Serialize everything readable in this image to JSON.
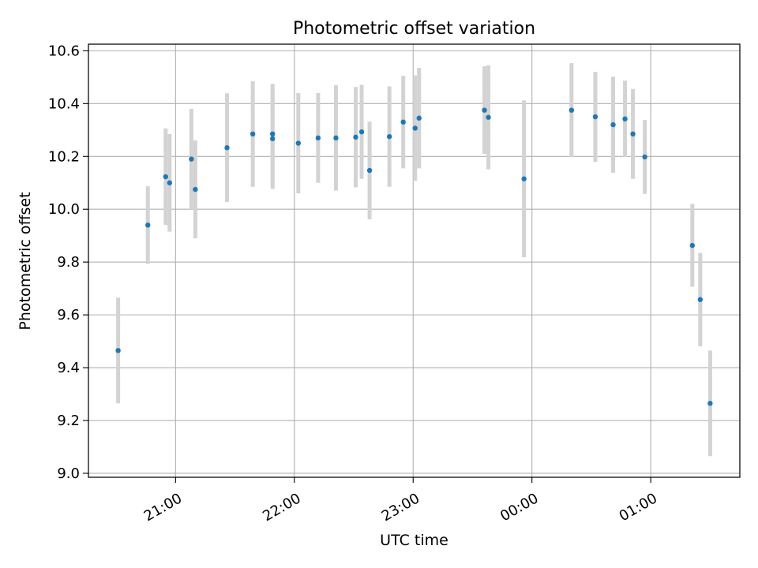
{
  "chart_data": {
    "type": "scatter",
    "title": "Photometric offset variation",
    "xlabel": "UTC time",
    "ylabel": "Photometric offset",
    "grid": true,
    "xlim": [
      "20:16",
      "01:45"
    ],
    "ylim": [
      8.985,
      10.625
    ],
    "x_ticks": [
      "21:00",
      "22:00",
      "23:00",
      "00:00",
      "01:00"
    ],
    "x_tick_times": [
      "21:00",
      "22:00",
      "23:00",
      "00:00",
      "01:00"
    ],
    "y_ticks": [
      "9.0",
      "9.2",
      "9.4",
      "9.6",
      "9.8",
      "10.0",
      "10.2",
      "10.4",
      "10.6"
    ],
    "y_tick_values": [
      9.0,
      9.2,
      9.4,
      9.6,
      9.8,
      10.0,
      10.2,
      10.4,
      10.6
    ],
    "marker_color": "#1f77b4",
    "errorbar_color": "#d3d3d3",
    "points": [
      {
        "x": "20:31",
        "y": 9.465,
        "err": 0.2
      },
      {
        "x": "20:46",
        "y": 9.94,
        "err": 0.147
      },
      {
        "x": "20:55",
        "y": 10.123,
        "err": 0.183
      },
      {
        "x": "20:57",
        "y": 10.1,
        "err": 0.185
      },
      {
        "x": "21:08",
        "y": 10.19,
        "err": 0.19
      },
      {
        "x": "21:10",
        "y": 10.075,
        "err": 0.185
      },
      {
        "x": "21:26",
        "y": 10.233,
        "err": 0.206
      },
      {
        "x": "21:39",
        "y": 10.285,
        "err": 0.2
      },
      {
        "x": "21:49",
        "y": 10.285,
        "err": 0.19
      },
      {
        "x": "21:49",
        "y": 10.267,
        "err": 0.19
      },
      {
        "x": "22:02",
        "y": 10.25,
        "err": 0.19
      },
      {
        "x": "22:12",
        "y": 10.27,
        "err": 0.17
      },
      {
        "x": "22:21",
        "y": 10.27,
        "err": 0.2
      },
      {
        "x": "22:31",
        "y": 10.273,
        "err": 0.19
      },
      {
        "x": "22:34",
        "y": 10.293,
        "err": 0.178
      },
      {
        "x": "22:38",
        "y": 10.147,
        "err": 0.185
      },
      {
        "x": "22:48",
        "y": 10.275,
        "err": 0.19
      },
      {
        "x": "22:55",
        "y": 10.33,
        "err": 0.175
      },
      {
        "x": "23:01",
        "y": 10.307,
        "err": 0.2
      },
      {
        "x": "23:03",
        "y": 10.345,
        "err": 0.19
      },
      {
        "x": "23:36",
        "y": 10.375,
        "err": 0.166
      },
      {
        "x": "23:38",
        "y": 10.348,
        "err": 0.197
      },
      {
        "x": "23:56",
        "y": 10.115,
        "err": 0.297
      },
      {
        "x": "00:20",
        "y": 10.375,
        "err": 0.178
      },
      {
        "x": "00:32",
        "y": 10.35,
        "err": 0.17
      },
      {
        "x": "00:41",
        "y": 10.32,
        "err": 0.182
      },
      {
        "x": "00:47",
        "y": 10.342,
        "err": 0.145
      },
      {
        "x": "00:51",
        "y": 10.285,
        "err": 0.17
      },
      {
        "x": "00:57",
        "y": 10.198,
        "err": 0.14
      },
      {
        "x": "01:21",
        "y": 9.863,
        "err": 0.157
      },
      {
        "x": "01:25",
        "y": 9.658,
        "err": 0.177
      },
      {
        "x": "01:30",
        "y": 9.265,
        "err": 0.2
      }
    ]
  }
}
